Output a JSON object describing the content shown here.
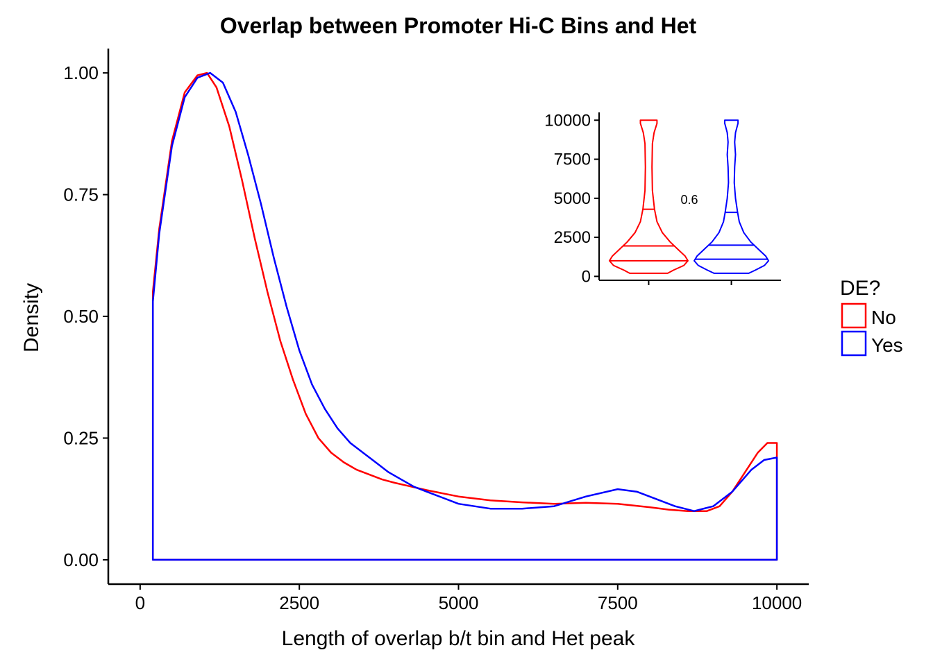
{
  "chart_data": [
    {
      "type": "line",
      "subtype": "density",
      "title": "Overlap between Promoter Hi-C Bins and Het",
      "xlabel": "Length of overlap b/t bin and Het peak",
      "ylabel": "Density",
      "xlim": [
        -500,
        10500
      ],
      "ylim": [
        -0.05,
        1.05
      ],
      "xticks": [
        0,
        2500,
        5000,
        7500,
        10000
      ],
      "xtick_labels": [
        "0",
        "2500",
        "5000",
        "7500",
        "10000"
      ],
      "yticks": [
        0,
        0.25,
        0.5,
        0.75,
        1.0
      ],
      "ytick_labels": [
        "0.00",
        "0.25",
        "0.50",
        "0.75",
        "1.00"
      ],
      "grid": false,
      "legend": {
        "title": "DE?",
        "placement": "right"
      },
      "series": [
        {
          "name": "No",
          "color": "#ff0000",
          "x": [
            200,
            200,
            300,
            500,
            700,
            900,
            1050,
            1200,
            1400,
            1600,
            1800,
            2000,
            2200,
            2400,
            2600,
            2800,
            3000,
            3200,
            3400,
            3600,
            3800,
            4000,
            4200,
            4500,
            5000,
            5500,
            6000,
            6500,
            7000,
            7500,
            8000,
            8300,
            8600,
            8900,
            9100,
            9300,
            9500,
            9700,
            9850,
            10000,
            10000,
            200
          ],
          "y": [
            0.0,
            0.55,
            0.68,
            0.86,
            0.96,
            0.995,
            1.0,
            0.97,
            0.89,
            0.78,
            0.66,
            0.55,
            0.45,
            0.37,
            0.3,
            0.25,
            0.22,
            0.2,
            0.185,
            0.175,
            0.165,
            0.158,
            0.152,
            0.143,
            0.13,
            0.122,
            0.118,
            0.115,
            0.117,
            0.115,
            0.108,
            0.103,
            0.1,
            0.1,
            0.11,
            0.14,
            0.18,
            0.22,
            0.24,
            0.24,
            0.0,
            0.0
          ]
        },
        {
          "name": "Yes",
          "color": "#0000ff",
          "x": [
            200,
            200,
            300,
            500,
            700,
            900,
            1100,
            1300,
            1500,
            1700,
            1900,
            2100,
            2300,
            2500,
            2700,
            2900,
            3100,
            3300,
            3500,
            3700,
            3900,
            4100,
            4300,
            4500,
            4700,
            5000,
            5500,
            6000,
            6500,
            7000,
            7500,
            7800,
            8100,
            8400,
            8700,
            9000,
            9300,
            9600,
            9800,
            10000,
            10000,
            200
          ],
          "y": [
            0.0,
            0.53,
            0.67,
            0.85,
            0.95,
            0.99,
            1.0,
            0.98,
            0.92,
            0.83,
            0.73,
            0.62,
            0.52,
            0.43,
            0.36,
            0.31,
            0.27,
            0.24,
            0.22,
            0.2,
            0.18,
            0.165,
            0.15,
            0.14,
            0.13,
            0.115,
            0.105,
            0.105,
            0.11,
            0.13,
            0.145,
            0.14,
            0.125,
            0.11,
            0.1,
            0.11,
            0.14,
            0.185,
            0.205,
            0.21,
            0.0,
            0.0
          ]
        }
      ]
    },
    {
      "type": "violin",
      "ylim": [
        -250,
        10500
      ],
      "yticks": [
        0,
        2500,
        5000,
        7500,
        10000
      ],
      "ytick_labels": [
        "0",
        "2500",
        "5000",
        "7500",
        "10000"
      ],
      "categories": [
        "No",
        "Yes"
      ],
      "annotation": "0.6",
      "series": [
        {
          "name": "No",
          "color": "#ff0000",
          "quantiles": [
            1000,
            1950,
            4300
          ],
          "profile_y": [
            200,
            400,
            700,
            1000,
            1300,
            1700,
            2200,
            2800,
            3500,
            4300,
            5500,
            7000,
            8500,
            9200,
            9800,
            10000
          ],
          "profile_halfwidth": [
            0.46,
            0.6,
            0.85,
            0.95,
            0.88,
            0.72,
            0.52,
            0.33,
            0.2,
            0.14,
            0.09,
            0.08,
            0.09,
            0.13,
            0.2,
            0.2
          ]
        },
        {
          "name": "Yes",
          "color": "#0000ff",
          "quantiles": [
            1100,
            2000,
            4100
          ],
          "profile_y": [
            200,
            400,
            700,
            1000,
            1300,
            1700,
            2200,
            2800,
            3500,
            4100,
            5000,
            6000,
            7000,
            7800,
            8600,
            9200,
            9800,
            10000
          ],
          "profile_halfwidth": [
            0.42,
            0.58,
            0.8,
            0.9,
            0.83,
            0.67,
            0.47,
            0.3,
            0.19,
            0.15,
            0.1,
            0.07,
            0.08,
            0.1,
            0.08,
            0.1,
            0.16,
            0.16
          ]
        }
      ]
    }
  ]
}
